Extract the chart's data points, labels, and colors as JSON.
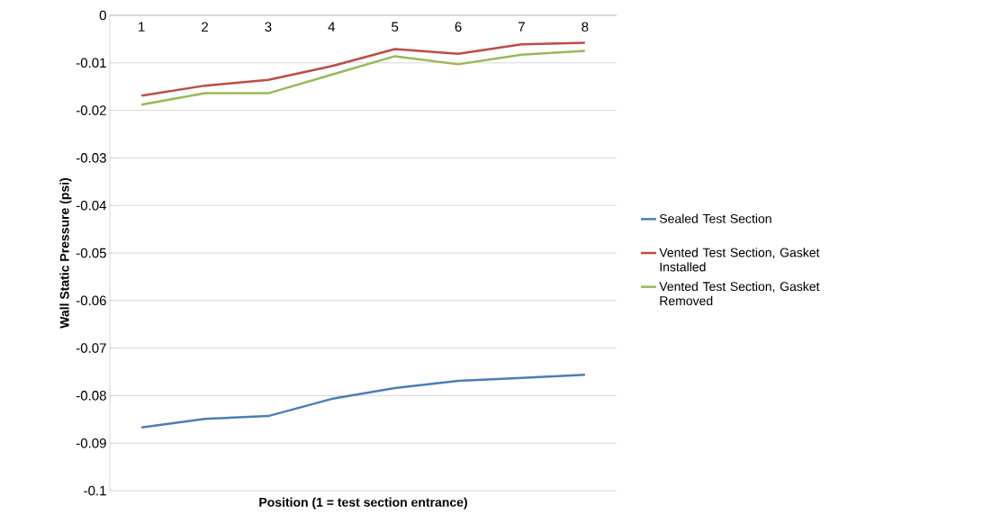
{
  "chart_data": {
    "type": "line",
    "xlabel": "Position (1 = test section entrance)",
    "ylabel": "Wall Static Pressure (psi)",
    "categories": [
      "1",
      "2",
      "3",
      "4",
      "5",
      "6",
      "7",
      "8"
    ],
    "series": [
      {
        "name": "Sealed Test Section",
        "color": "#4a7ebb",
        "values": [
          -0.0867,
          -0.0849,
          -0.0843,
          -0.0807,
          -0.0784,
          -0.0769,
          -0.0763,
          -0.0756
        ]
      },
      {
        "name": "Vented Test Section, Gasket Installed",
        "color": "#be4b48",
        "values": [
          -0.0169,
          -0.0148,
          -0.0136,
          -0.0107,
          -0.0071,
          -0.0081,
          -0.0061,
          -0.0058
        ]
      },
      {
        "name": "Vented Test Section, Gasket Removed",
        "color": "#98b954",
        "values": [
          -0.0188,
          -0.0164,
          -0.0164,
          -0.0125,
          -0.0086,
          -0.0103,
          -0.0083,
          -0.0075
        ]
      }
    ],
    "ylim": [
      -0.1,
      0
    ],
    "yticks": [
      -0.1,
      -0.09,
      -0.08,
      -0.07,
      -0.06,
      -0.05,
      -0.04,
      -0.03,
      -0.02,
      -0.01,
      0
    ],
    "grid": "y",
    "legend": "right",
    "marker": "none",
    "line_style": "solid"
  }
}
